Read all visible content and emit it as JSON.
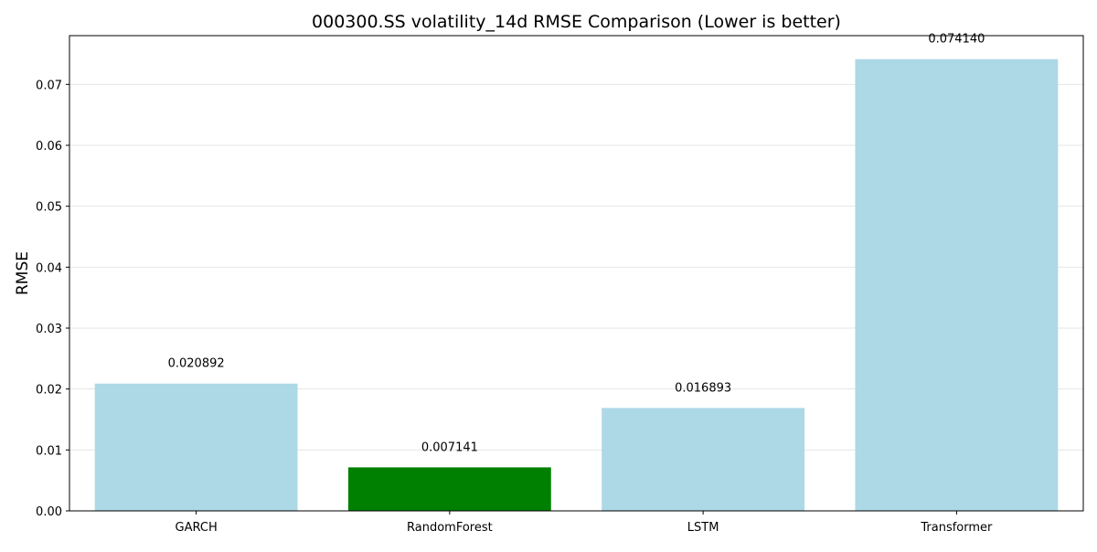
{
  "chart_data": {
    "type": "bar",
    "title": "000300.SS volatility_14d RMSE Comparison (Lower is better)",
    "xlabel": "",
    "ylabel": "RMSE",
    "categories": [
      "GARCH",
      "RandomForest",
      "LSTM",
      "Transformer"
    ],
    "values": [
      0.020892,
      0.007141,
      0.016893,
      0.07414
    ],
    "data_labels": [
      "0.020892",
      "0.007141",
      "0.016893",
      "0.074140"
    ],
    "bar_colors": [
      "#add8e6",
      "#008000",
      "#add8e6",
      "#add8e6"
    ],
    "highlight": "RandomForest",
    "ylim": [
      0,
      0.078
    ],
    "yticks": [
      0.0,
      0.01,
      0.02,
      0.03,
      0.04,
      0.05,
      0.06,
      0.07
    ],
    "ytick_labels": [
      "0.00",
      "0.01",
      "0.02",
      "0.03",
      "0.04",
      "0.05",
      "0.06",
      "0.07"
    ],
    "grid": "y-axis",
    "legend": "none"
  }
}
